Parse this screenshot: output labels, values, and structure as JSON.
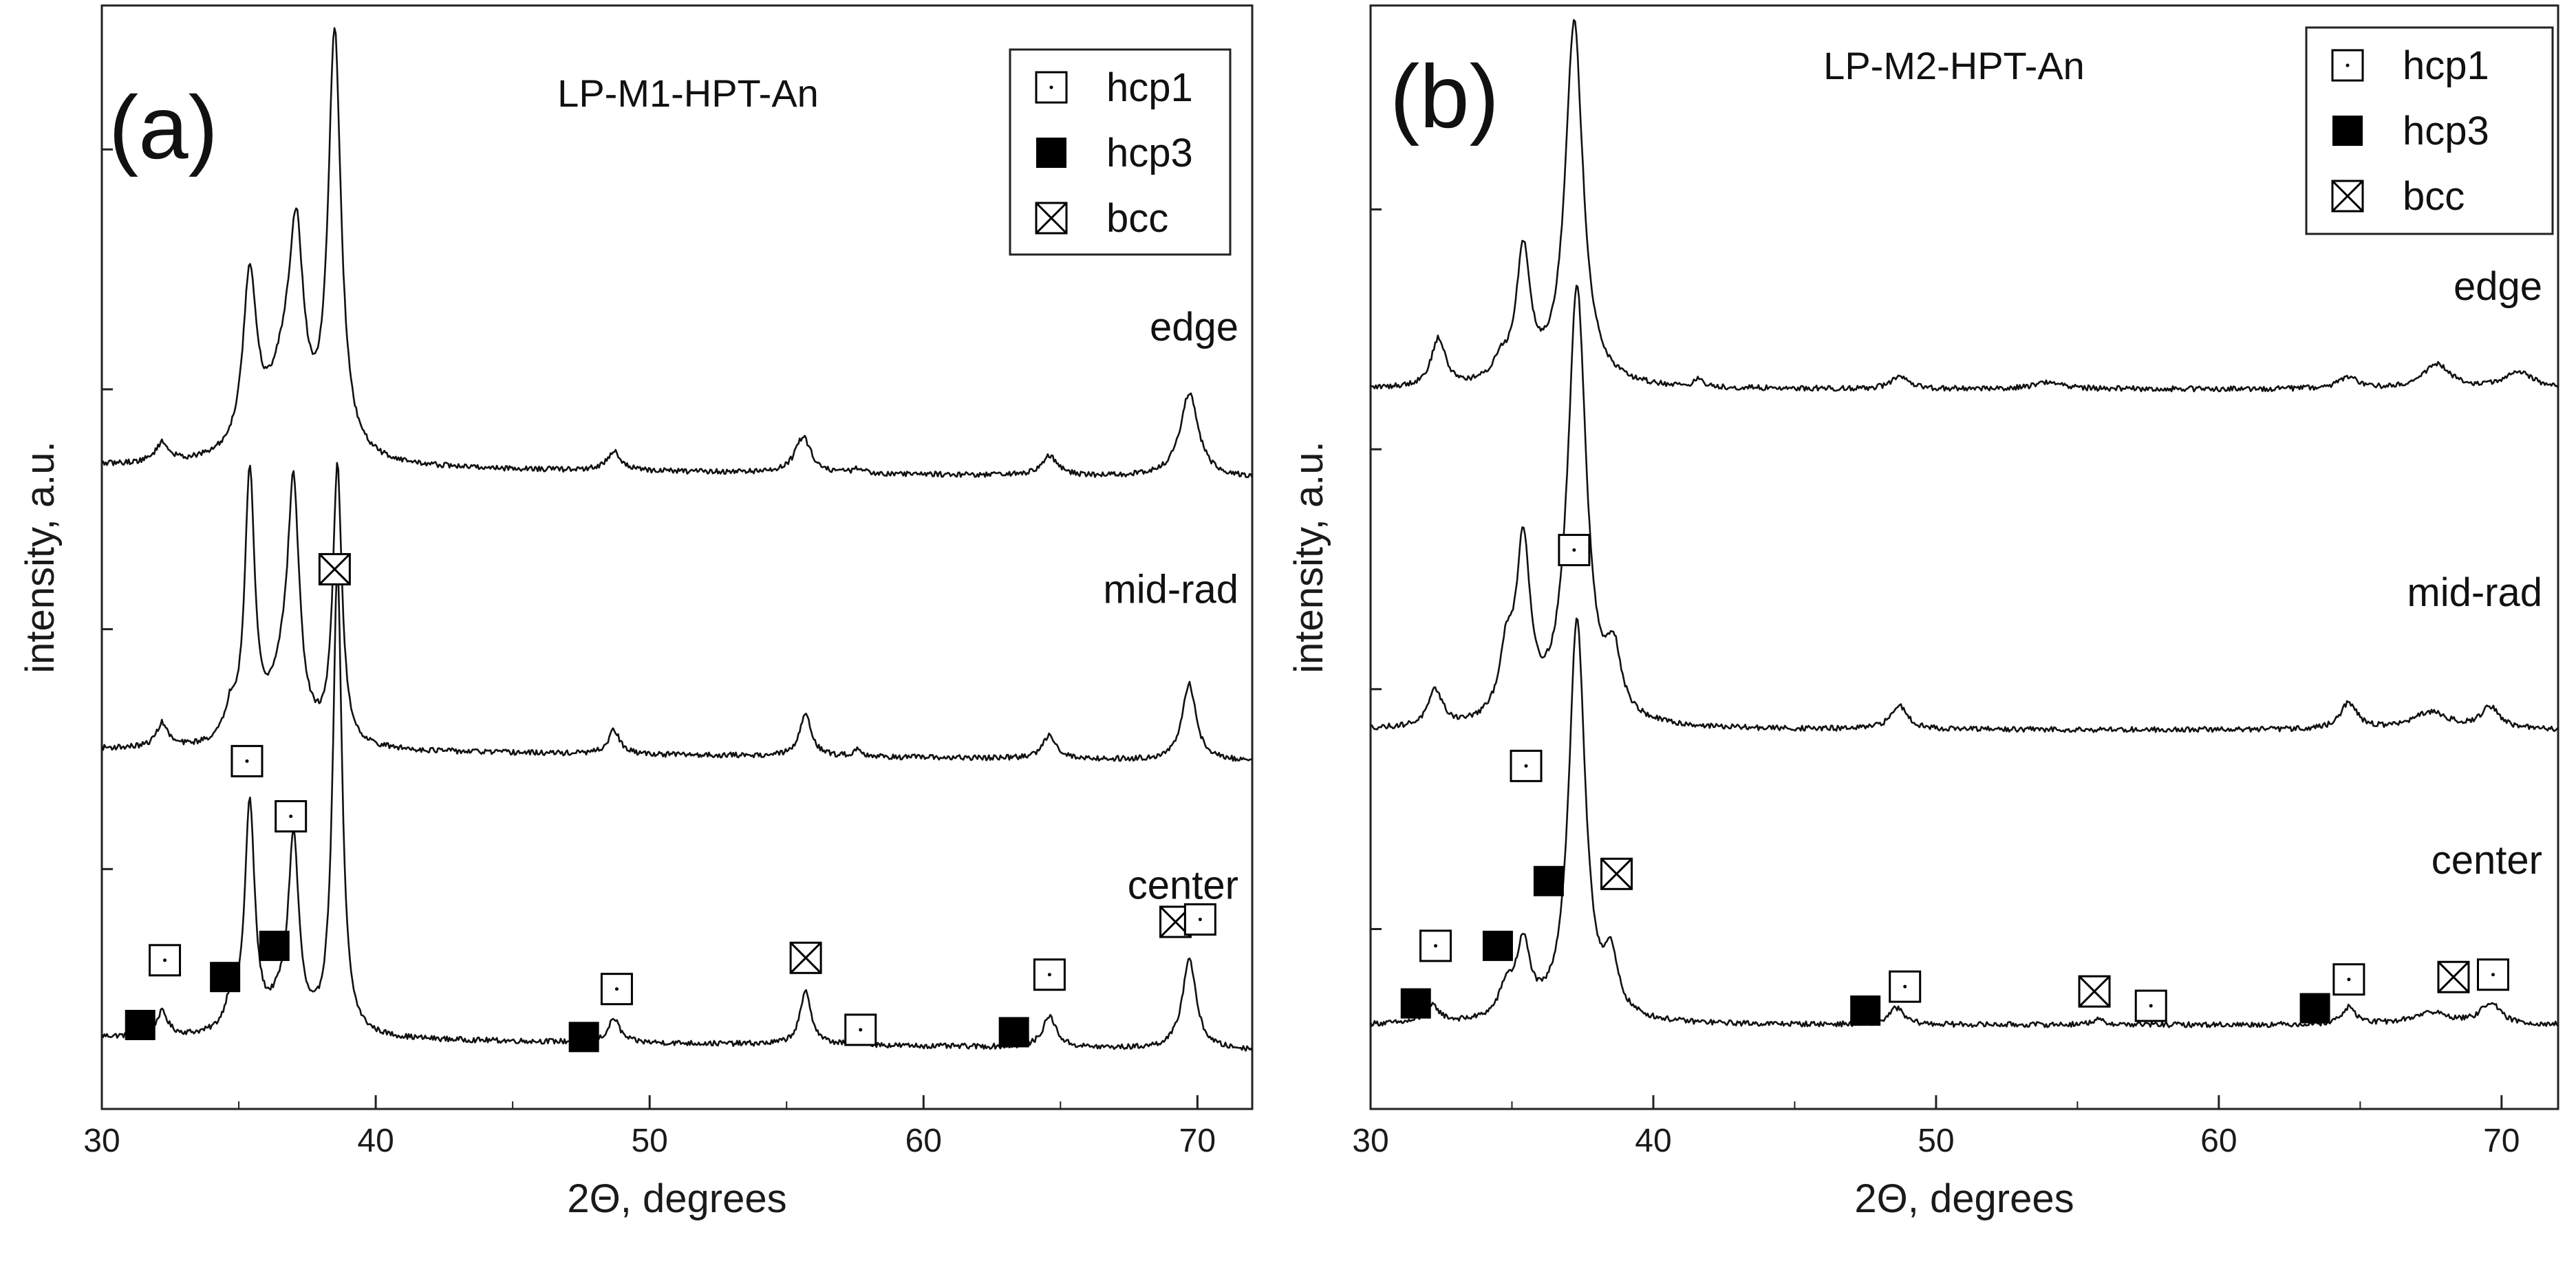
{
  "chart_data": [
    {
      "type": "line",
      "panel_label": "(a)",
      "title": "LP-M1-HPT-An",
      "xlabel": "2Θ, degrees",
      "ylabel": "intensity, a.u.",
      "xlim": [
        30,
        72
      ],
      "xticks": [
        30,
        40,
        50,
        60,
        70
      ],
      "ylim": [
        0,
        4.6
      ],
      "legend": {
        "position": "top-right",
        "entries": [
          {
            "name": "hcp1",
            "marker": "open-square-dot"
          },
          {
            "name": "hcp3",
            "marker": "filled-square"
          },
          {
            "name": "bcc",
            "marker": "crossed-square"
          }
        ]
      },
      "series": [
        {
          "name": "center",
          "baseline": 0.3,
          "bg_slope": -0.0013,
          "peaks": [
            [
              32.2,
              0.1,
              0.25
            ],
            [
              34.7,
              0.12,
              0.25
            ],
            [
              35.4,
              0.95,
              0.22
            ],
            [
              36.5,
              0.1,
              0.5
            ],
            [
              37.0,
              0.78,
              0.23
            ],
            [
              38.6,
              1.95,
              0.2
            ],
            [
              48.7,
              0.1,
              0.25
            ],
            [
              55.7,
              0.22,
              0.25
            ],
            [
              57.6,
              0.03,
              0.2
            ],
            [
              64.6,
              0.13,
              0.3
            ],
            [
              69.7,
              0.38,
              0.3
            ]
          ]
        },
        {
          "name": "mid-rad",
          "baseline": 1.5,
          "bg_slope": -0.0012,
          "peaks": [
            [
              32.2,
              0.1,
              0.25
            ],
            [
              34.7,
              0.12,
              0.25
            ],
            [
              35.4,
              1.1,
              0.22
            ],
            [
              36.6,
              0.25,
              0.6
            ],
            [
              37.0,
              0.95,
              0.25
            ],
            [
              38.6,
              1.15,
              0.2
            ],
            [
              48.7,
              0.1,
              0.25
            ],
            [
              55.7,
              0.18,
              0.25
            ],
            [
              57.6,
              0.03,
              0.2
            ],
            [
              64.6,
              0.1,
              0.3
            ],
            [
              69.7,
              0.32,
              0.3
            ]
          ]
        },
        {
          "name": "edge",
          "baseline": 2.68,
          "bg_slope": -0.0012,
          "peaks": [
            [
              32.2,
              0.08,
              0.3
            ],
            [
              35.4,
              0.72,
              0.3
            ],
            [
              36.7,
              0.35,
              0.8
            ],
            [
              37.1,
              0.72,
              0.3
            ],
            [
              38.5,
              1.75,
              0.28
            ],
            [
              48.7,
              0.08,
              0.3
            ],
            [
              55.6,
              0.15,
              0.35
            ],
            [
              57.6,
              0.02,
              0.2
            ],
            [
              64.6,
              0.08,
              0.35
            ],
            [
              69.7,
              0.35,
              0.4
            ]
          ]
        }
      ],
      "markers": [
        {
          "type": "hcp1",
          "x": 32.3,
          "y": 0.62
        },
        {
          "type": "hcp3",
          "x": 31.4,
          "y": 0.35
        },
        {
          "type": "hcp3",
          "x": 34.5,
          "y": 0.55
        },
        {
          "type": "hcp3",
          "x": 36.3,
          "y": 0.68
        },
        {
          "type": "hcp1",
          "x": 35.3,
          "y": 1.45
        },
        {
          "type": "hcp1",
          "x": 36.9,
          "y": 1.22
        },
        {
          "type": "bcc",
          "x": 38.5,
          "y": 2.25
        },
        {
          "type": "hcp3",
          "x": 47.6,
          "y": 0.3
        },
        {
          "type": "hcp1",
          "x": 48.8,
          "y": 0.5
        },
        {
          "type": "bcc",
          "x": 55.7,
          "y": 0.63
        },
        {
          "type": "hcp1",
          "x": 57.7,
          "y": 0.33
        },
        {
          "type": "hcp3",
          "x": 63.3,
          "y": 0.32
        },
        {
          "type": "hcp1",
          "x": 64.6,
          "y": 0.56
        },
        {
          "type": "bcc",
          "x": 69.2,
          "y": 0.78
        },
        {
          "type": "hcp1",
          "x": 70.1,
          "y": 0.79
        }
      ],
      "curve_labels": [
        {
          "text": "edge",
          "series": "edge"
        },
        {
          "text": "mid-rad",
          "series": "mid-rad"
        },
        {
          "text": "center",
          "series": "center"
        }
      ]
    },
    {
      "type": "line",
      "panel_label": "(b)",
      "title": "LP-M2-HPT-An",
      "xlabel": "2Θ, degrees",
      "ylabel": "intensity, a.u.",
      "xlim": [
        30,
        72
      ],
      "xticks": [
        30,
        40,
        50,
        60,
        70
      ],
      "ylim": [
        0,
        4.6
      ],
      "legend": {
        "position": "top-right",
        "entries": [
          {
            "name": "hcp1",
            "marker": "open-square-dot"
          },
          {
            "name": "hcp3",
            "marker": "filled-square"
          },
          {
            "name": "bcc",
            "marker": "crossed-square"
          }
        ]
      },
      "series": [
        {
          "name": "center",
          "baseline": 0.35,
          "bg_slope": 0.0,
          "peaks": [
            [
              32.2,
              0.07,
              0.3
            ],
            [
              34.8,
              0.12,
              0.3
            ],
            [
              35.4,
              0.3,
              0.3
            ],
            [
              37.3,
              1.68,
              0.35
            ],
            [
              38.5,
              0.22,
              0.3
            ],
            [
              48.6,
              0.07,
              0.3
            ],
            [
              55.7,
              0.02,
              0.3
            ],
            [
              64.6,
              0.07,
              0.3
            ],
            [
              67.5,
              0.05,
              0.8
            ],
            [
              69.6,
              0.09,
              0.4
            ]
          ]
        },
        {
          "name": "mid-rad",
          "baseline": 1.58,
          "bg_slope": 0.0,
          "peaks": [
            [
              32.3,
              0.15,
              0.3
            ],
            [
              34.8,
              0.25,
              0.3
            ],
            [
              35.4,
              0.72,
              0.3
            ],
            [
              37.3,
              1.82,
              0.4
            ],
            [
              38.6,
              0.25,
              0.3
            ],
            [
              48.7,
              0.1,
              0.35
            ],
            [
              64.6,
              0.11,
              0.35
            ],
            [
              67.5,
              0.07,
              0.8
            ],
            [
              69.6,
              0.09,
              0.4
            ]
          ]
        },
        {
          "name": "edge",
          "baseline": 3.0,
          "bg_slope": 0.0,
          "peaks": [
            [
              32.4,
              0.2,
              0.3
            ],
            [
              34.6,
              0.08,
              0.3
            ],
            [
              35.4,
              0.55,
              0.3
            ],
            [
              37.2,
              1.52,
              0.38
            ],
            [
              41.6,
              0.03,
              0.2
            ],
            [
              48.7,
              0.05,
              0.35
            ],
            [
              54.0,
              0.03,
              0.6
            ],
            [
              64.6,
              0.05,
              0.4
            ],
            [
              67.7,
              0.1,
              0.6
            ],
            [
              70.6,
              0.07,
              0.6
            ]
          ]
        }
      ],
      "markers": [
        {
          "type": "hcp1",
          "x": 32.3,
          "y": 0.68
        },
        {
          "type": "hcp3",
          "x": 31.6,
          "y": 0.44
        },
        {
          "type": "hcp3",
          "x": 34.5,
          "y": 0.68
        },
        {
          "type": "hcp1",
          "x": 35.5,
          "y": 1.43
        },
        {
          "type": "hcp3",
          "x": 36.3,
          "y": 0.95
        },
        {
          "type": "bcc",
          "x": 38.7,
          "y": 0.98
        },
        {
          "type": "hcp1",
          "x": 37.2,
          "y": 2.33
        },
        {
          "type": "hcp3",
          "x": 47.5,
          "y": 0.41
        },
        {
          "type": "hcp1",
          "x": 48.9,
          "y": 0.51
        },
        {
          "type": "bcc",
          "x": 55.6,
          "y": 0.49
        },
        {
          "type": "hcp1",
          "x": 57.6,
          "y": 0.43
        },
        {
          "type": "hcp3",
          "x": 63.4,
          "y": 0.42
        },
        {
          "type": "hcp1",
          "x": 64.6,
          "y": 0.54
        },
        {
          "type": "bcc",
          "x": 68.3,
          "y": 0.55
        },
        {
          "type": "hcp1",
          "x": 69.7,
          "y": 0.56
        }
      ],
      "curve_labels": [
        {
          "text": "edge",
          "series": "edge"
        },
        {
          "text": "mid-rad",
          "series": "mid-rad"
        },
        {
          "text": "center",
          "series": "center"
        }
      ]
    }
  ]
}
